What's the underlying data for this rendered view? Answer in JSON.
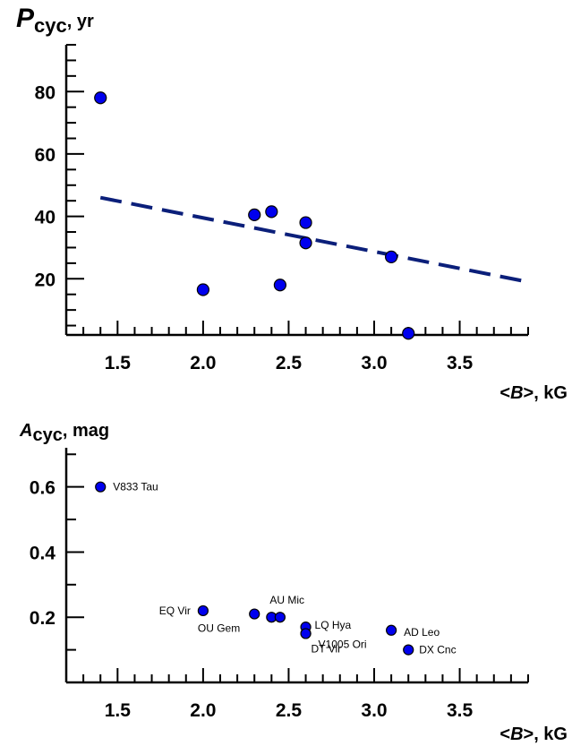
{
  "chart_data": [
    {
      "type": "scatter",
      "title": "",
      "ylabel_symbol": "P",
      "ylabel_sub": "cyc",
      "ylabel_unit": ", yr",
      "xlabel_open": "<",
      "xlabel_symbol": "B",
      "xlabel_close": ">, kG",
      "xlim": [
        1.2,
        3.9
      ],
      "ylim": [
        2,
        95
      ],
      "xticks": [
        1.5,
        2.0,
        2.5,
        3.0,
        3.5
      ],
      "yticks": [
        20,
        40,
        60,
        80
      ],
      "x": [
        1.4,
        2.0,
        2.3,
        2.4,
        2.45,
        2.6,
        2.6,
        3.1,
        3.2
      ],
      "y": [
        78,
        16.5,
        40.5,
        41.5,
        18,
        38,
        31.5,
        27,
        2.5
      ],
      "point_color": "#0000ee",
      "trend_line": {
        "x": [
          1.4,
          3.9
        ],
        "y": [
          46,
          19
        ],
        "style": "dashed",
        "color": "#0b1f7a"
      }
    },
    {
      "type": "scatter",
      "title": "",
      "ylabel_symbol": "A",
      "ylabel_sub": "cyc",
      "ylabel_unit": ", mag",
      "xlabel_open": "<",
      "xlabel_symbol": "B",
      "xlabel_close": ">, kG",
      "xlim": [
        1.2,
        3.9
      ],
      "ylim": [
        0,
        0.72
      ],
      "xticks": [
        1.5,
        2.0,
        2.5,
        3.0,
        3.5
      ],
      "yticks": [
        0.2,
        0.4,
        0.6
      ],
      "point_color": "#0000ee",
      "points": [
        {
          "x": 1.4,
          "y": 0.6,
          "label": "V833 Tau"
        },
        {
          "x": 2.0,
          "y": 0.22,
          "label": "EQ Vir"
        },
        {
          "x": 2.3,
          "y": 0.21,
          "label": "OU Gem"
        },
        {
          "x": 2.4,
          "y": 0.2,
          "label": "AU Mic"
        },
        {
          "x": 2.45,
          "y": 0.2,
          "label": ""
        },
        {
          "x": 2.6,
          "y": 0.17,
          "label": "LQ Hya"
        },
        {
          "x": 2.6,
          "y": 0.15,
          "label": "V1005 Ori"
        },
        {
          "x": 2.6,
          "y": 0.15,
          "label": "DT Vir"
        },
        {
          "x": 3.1,
          "y": 0.16,
          "label": "AD Leo"
        },
        {
          "x": 3.2,
          "y": 0.1,
          "label": "DX Cnc"
        }
      ]
    }
  ]
}
